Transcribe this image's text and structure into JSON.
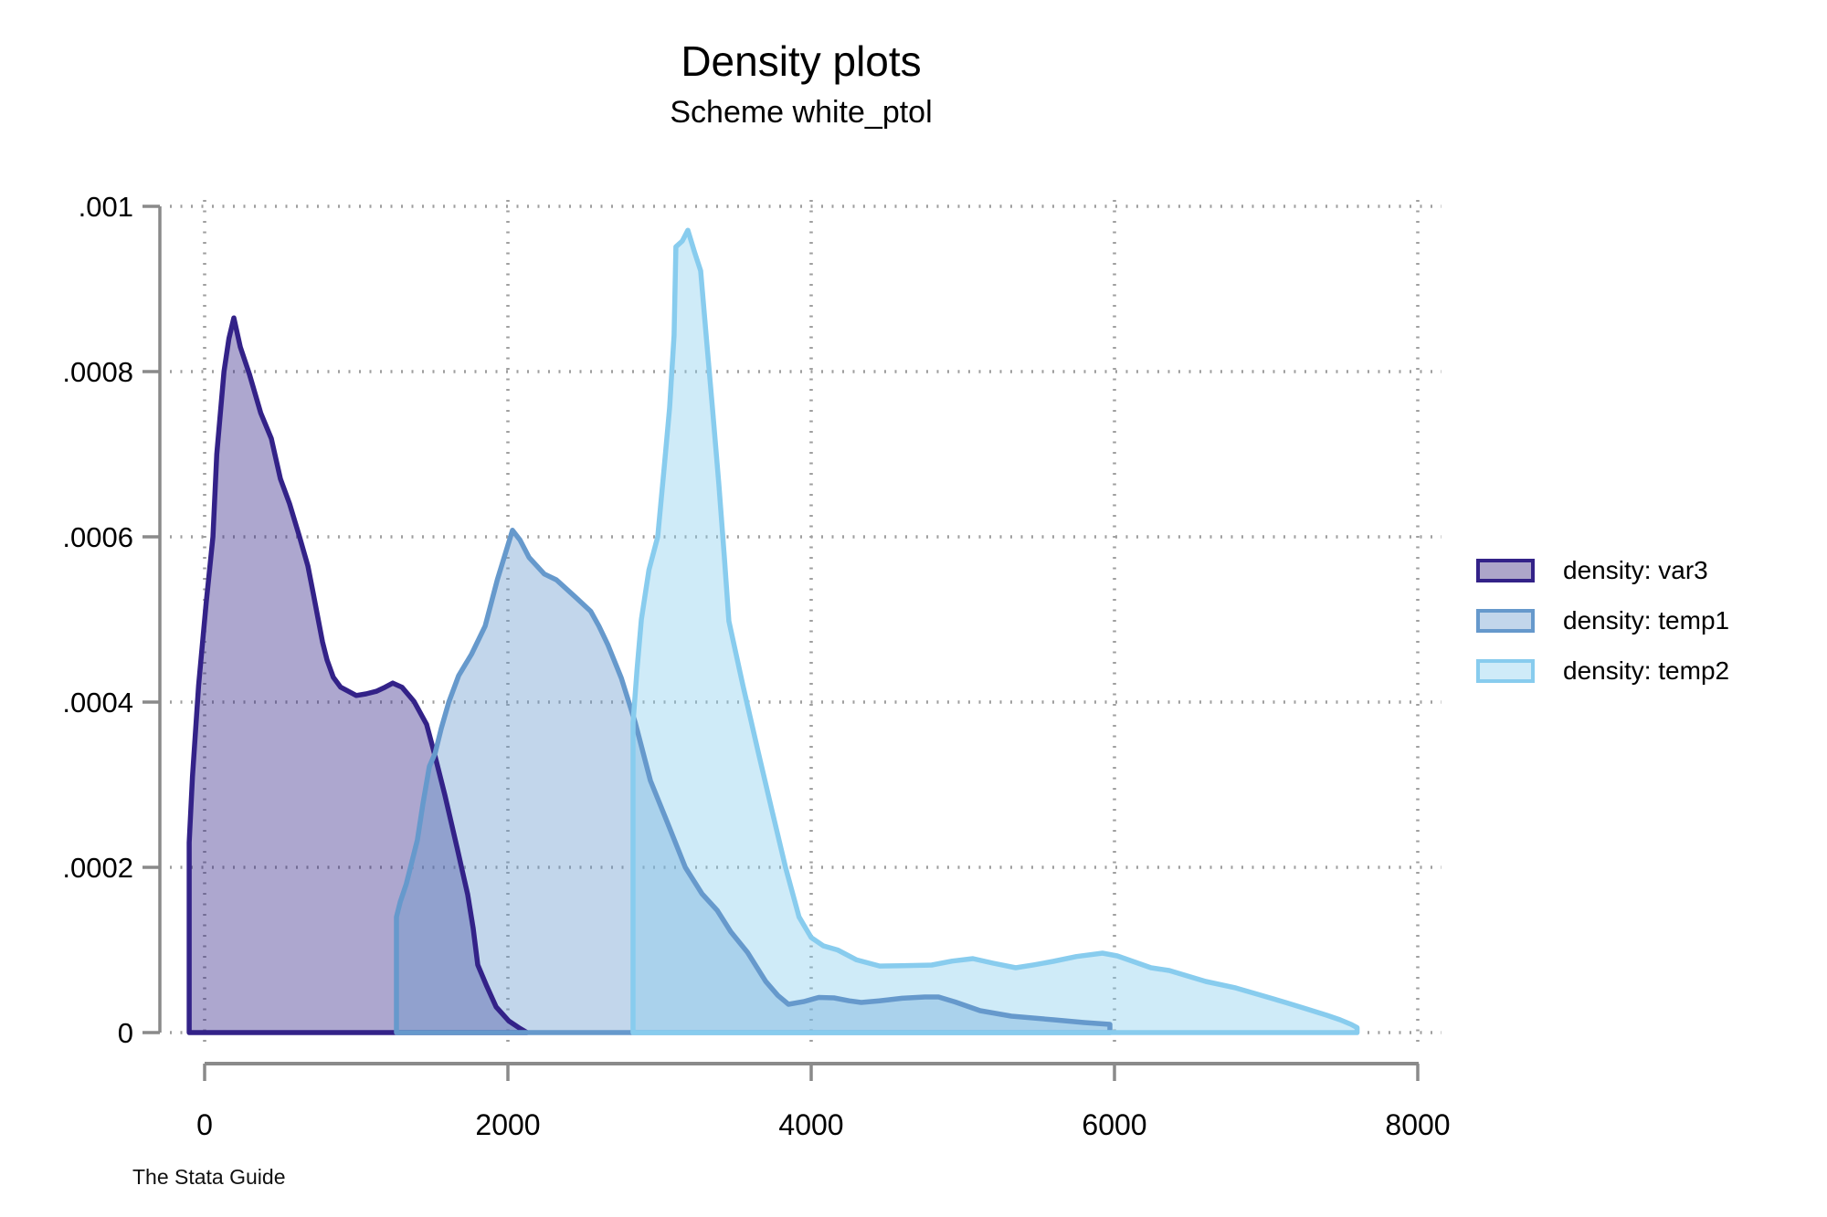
{
  "title": "Density plots",
  "subtitle": "Scheme white_ptol",
  "footnote": "The Stata Guide",
  "colors": {
    "axis": "#8a8a8a",
    "grid": "#9f9f9f",
    "background": "#ffffff",
    "series_var3": "#332288",
    "series_temp1": "#6699CC",
    "series_temp2": "#88CCEE",
    "swatch_fill_var3": "#ada6c9",
    "swatch_fill_temp1": "#c2d6eb",
    "swatch_fill_temp2": "#cfebf8"
  },
  "legend": [
    {
      "label": "density: var3",
      "stroke": "#332288",
      "fill": "#ada6c9"
    },
    {
      "label": "density: temp1",
      "stroke": "#6699CC",
      "fill": "#c2d6eb"
    },
    {
      "label": "density: temp2",
      "stroke": "#88CCEE",
      "fill": "#cfebf8"
    }
  ],
  "chart_data": {
    "type": "area",
    "title": "Density plots",
    "subtitle": "Scheme white_ptol",
    "xlabel": "",
    "ylabel": "",
    "xlim": [
      -250,
      8150
    ],
    "ylim": [
      0,
      0.001
    ],
    "grid": "dotted-both",
    "legend_position": "right",
    "x_ticks": [
      {
        "value": 0,
        "label": "0"
      },
      {
        "value": 2000,
        "label": "2000"
      },
      {
        "value": 4000,
        "label": "4000"
      },
      {
        "value": 6000,
        "label": "6000"
      },
      {
        "value": 8000,
        "label": "8000"
      }
    ],
    "y_ticks": [
      {
        "value": 0,
        "label": "0"
      },
      {
        "value": 0.0002,
        "label": ".0002"
      },
      {
        "value": 0.0004,
        "label": ".0004"
      },
      {
        "value": 0.0006,
        "label": ".0006"
      },
      {
        "value": 0.0008,
        "label": ".0008"
      },
      {
        "value": 0.001,
        "label": ".001"
      }
    ],
    "series": [
      {
        "name": "density: var3",
        "color": "#332288",
        "fill_opacity": 0.4,
        "points": [
          [
            -102,
            0
          ],
          [
            -102,
            0.00023
          ],
          [
            -80,
            0.00031
          ],
          [
            -40,
            0.00042
          ],
          [
            10,
            0.00052
          ],
          [
            55,
            0.0006
          ],
          [
            80,
            0.0007
          ],
          [
            128,
            0.0008
          ],
          [
            160,
            0.00084
          ],
          [
            193,
            0.000865
          ],
          [
            235,
            0.00083
          ],
          [
            295,
            0.000797
          ],
          [
            370,
            0.00075
          ],
          [
            440,
            0.000719
          ],
          [
            500,
            0.00067
          ],
          [
            560,
            0.00064
          ],
          [
            626,
            0.0006
          ],
          [
            681,
            0.000565
          ],
          [
            717,
            0.000531
          ],
          [
            747,
            0.000502
          ],
          [
            777,
            0.000473
          ],
          [
            807,
            0.000451
          ],
          [
            849,
            0.00043
          ],
          [
            897,
            0.000418
          ],
          [
            1000,
            0.000408
          ],
          [
            1065,
            0.00041
          ],
          [
            1132,
            0.000413
          ],
          [
            1190,
            0.000418
          ],
          [
            1241,
            0.000423
          ],
          [
            1301,
            0.000418
          ],
          [
            1380,
            0.000401
          ],
          [
            1464,
            0.000373
          ],
          [
            1512,
            0.00034
          ],
          [
            1584,
            0.000288
          ],
          [
            1663,
            0.000225
          ],
          [
            1735,
            0.000167
          ],
          [
            1771,
            0.000126
          ],
          [
            1801,
            8.2e-05
          ],
          [
            1861,
            5.6e-05
          ],
          [
            1922,
            3.1e-05
          ],
          [
            2006,
            1.4e-05
          ],
          [
            2080,
            5e-06
          ],
          [
            2126,
            0
          ]
        ]
      },
      {
        "name": "density: temp1",
        "color": "#6699CC",
        "fill_opacity": 0.4,
        "points": [
          [
            1265,
            0
          ],
          [
            1265,
            0.00014
          ],
          [
            1290,
            0.000158
          ],
          [
            1330,
            0.00018
          ],
          [
            1403,
            0.000233
          ],
          [
            1440,
            0.000277
          ],
          [
            1482,
            0.000322
          ],
          [
            1520,
            0.000338
          ],
          [
            1560,
            0.000368
          ],
          [
            1610,
            0.0004
          ],
          [
            1675,
            0.000432
          ],
          [
            1760,
            0.000458
          ],
          [
            1850,
            0.000492
          ],
          [
            1930,
            0.000548
          ],
          [
            1980,
            0.000578
          ],
          [
            2030,
            0.000608
          ],
          [
            2080,
            0.000596
          ],
          [
            2140,
            0.000575
          ],
          [
            2240,
            0.000555
          ],
          [
            2320,
            0.000548
          ],
          [
            2440,
            0.000528
          ],
          [
            2546,
            0.00051
          ],
          [
            2600,
            0.000492
          ],
          [
            2660,
            0.000469
          ],
          [
            2748,
            0.000429
          ],
          [
            2840,
            0.000375
          ],
          [
            2940,
            0.000305
          ],
          [
            3050,
            0.000255
          ],
          [
            3170,
            0.0002
          ],
          [
            3280,
            0.000168
          ],
          [
            3380,
            0.000148
          ],
          [
            3470,
            0.000122
          ],
          [
            3580,
            9.7e-05
          ],
          [
            3700,
            6.2e-05
          ],
          [
            3780,
            4.5e-05
          ],
          [
            3850,
            3.43e-05
          ],
          [
            3950,
            3.75e-05
          ],
          [
            4050,
            4.25e-05
          ],
          [
            4150,
            4.2e-05
          ],
          [
            4250,
            3.85e-05
          ],
          [
            4330,
            3.65e-05
          ],
          [
            4450,
            3.85e-05
          ],
          [
            4600,
            4.15e-05
          ],
          [
            4750,
            4.31e-05
          ],
          [
            4840,
            4.31e-05
          ],
          [
            4950,
            3.7e-05
          ],
          [
            5114,
            2.65e-05
          ],
          [
            5320,
            1.99e-05
          ],
          [
            5600,
            1.55e-05
          ],
          [
            5800,
            1.22e-05
          ],
          [
            5970,
            1e-05
          ],
          [
            5970,
            0
          ]
        ]
      },
      {
        "name": "density: temp2",
        "color": "#88CCEE",
        "fill_opacity": 0.4,
        "points": [
          [
            2825,
            0
          ],
          [
            2825,
            0.000375
          ],
          [
            2852,
            0.00044
          ],
          [
            2880,
            0.0005
          ],
          [
            2930,
            0.00056
          ],
          [
            2988,
            0.0006
          ],
          [
            3030,
            0.000683
          ],
          [
            3066,
            0.000756
          ],
          [
            3096,
            0.000844
          ],
          [
            3108,
            0.000951
          ],
          [
            3150,
            0.000958
          ],
          [
            3187,
            0.000971
          ],
          [
            3230,
            0.000945
          ],
          [
            3271,
            0.000922
          ],
          [
            3307,
            0.000844
          ],
          [
            3349,
            0.000756
          ],
          [
            3391,
            0.000664
          ],
          [
            3427,
            0.000576
          ],
          [
            3457,
            0.000498
          ],
          [
            3550,
            0.00042
          ],
          [
            3650,
            0.00034
          ],
          [
            3740,
            0.00027
          ],
          [
            3831,
            0.0002
          ],
          [
            3920,
            0.00014
          ],
          [
            4000,
            0.000115
          ],
          [
            4080,
            0.000105
          ],
          [
            4174,
            0.0001
          ],
          [
            4300,
            8.8e-05
          ],
          [
            4452,
            8.06e-05
          ],
          [
            4600,
            8.1e-05
          ],
          [
            4795,
            8.18e-05
          ],
          [
            4930,
            8.65e-05
          ],
          [
            5066,
            8.95e-05
          ],
          [
            5200,
            8.4e-05
          ],
          [
            5349,
            7.85e-05
          ],
          [
            5470,
            8.2e-05
          ],
          [
            5596,
            8.62e-05
          ],
          [
            5750,
            9.2e-05
          ],
          [
            5921,
            9.61e-05
          ],
          [
            6018,
            9.28e-05
          ],
          [
            6241,
            7.85e-05
          ],
          [
            6361,
            7.51e-05
          ],
          [
            6602,
            6.19e-05
          ],
          [
            6800,
            5.4e-05
          ],
          [
            6964,
            4.53e-05
          ],
          [
            7130,
            3.63e-05
          ],
          [
            7265,
            2.87e-05
          ],
          [
            7400,
            2.1e-05
          ],
          [
            7488,
            1.55e-05
          ],
          [
            7560,
            1e-05
          ],
          [
            7600,
            6e-06
          ],
          [
            7600,
            0
          ]
        ]
      }
    ]
  }
}
